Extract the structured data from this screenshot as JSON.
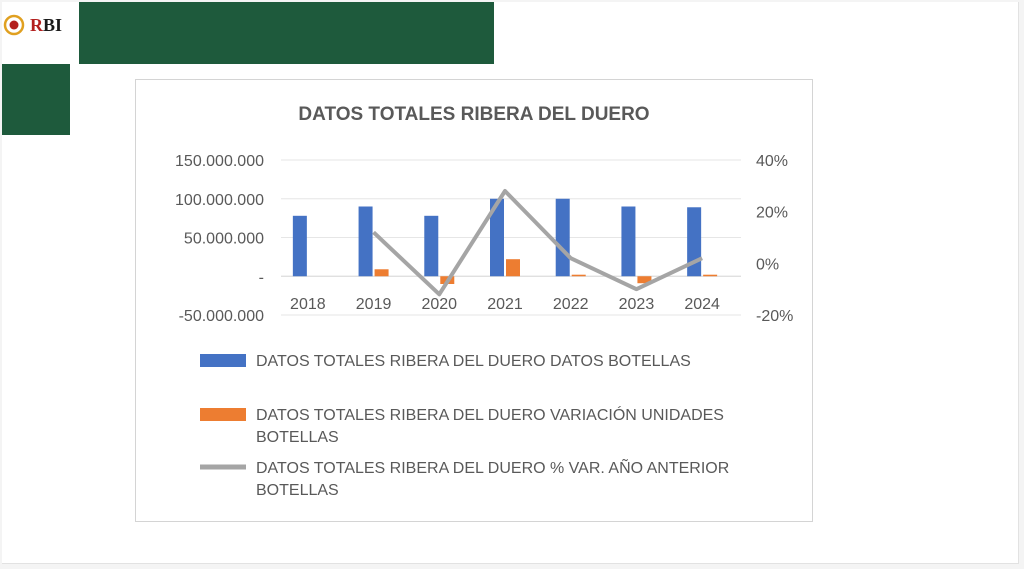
{
  "logo": {
    "text_red": "R",
    "text_dark": "BI",
    "colors": {
      "red": "#b3201f",
      "ring": "#e0a020"
    }
  },
  "colors": {
    "band": "#1e5a3c"
  },
  "chart_data": {
    "type": "bar",
    "title": "DATOS TOTALES RIBERA DEL DUERO",
    "categories": [
      "2018",
      "2019",
      "2020",
      "2021",
      "2022",
      "2023",
      "2024"
    ],
    "ylim": [
      -50000000,
      150000000
    ],
    "y_ticks": [
      -50000000,
      0,
      50000000,
      100000000,
      150000000
    ],
    "y_tick_labels": [
      "-50.000.000",
      "-",
      "50.000.000",
      "100.000.000",
      "150.000.000"
    ],
    "y2lim": [
      -0.2,
      0.4
    ],
    "y2_ticks": [
      -0.2,
      0,
      0.2,
      0.4
    ],
    "y2_tick_labels": [
      "-20%",
      "0%",
      "20%",
      "40%"
    ],
    "grid": true,
    "legend_position": "bottom",
    "series": [
      {
        "name": "DATOS TOTALES RIBERA DEL DUERO DATOS  BOTELLAS",
        "type": "bar",
        "axis": "left",
        "color": "#4472c4",
        "values": [
          78000000,
          90000000,
          78000000,
          100000000,
          100000000,
          90000000,
          89000000
        ]
      },
      {
        "name": "DATOS TOTALES RIBERA DEL DUERO VARIACIÓN UNIDADES BOTELLAS",
        "type": "bar",
        "axis": "left",
        "color": "#ed7d31",
        "values": [
          null,
          9000000,
          -10000000,
          22000000,
          2000000,
          -9000000,
          2000000
        ]
      },
      {
        "name": "DATOS TOTALES RIBERA DEL DUERO % VAR. AÑO ANTERIOR BOTELLAS",
        "type": "line",
        "axis": "right",
        "color": "#a5a5a5",
        "values": [
          null,
          0.12,
          -0.12,
          0.28,
          0.02,
          -0.1,
          0.02
        ]
      }
    ]
  }
}
